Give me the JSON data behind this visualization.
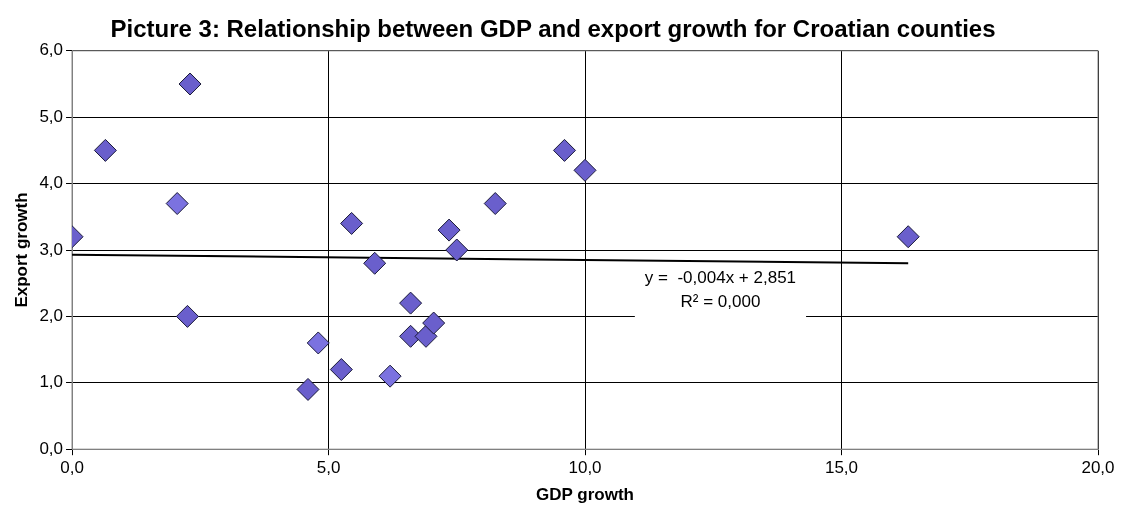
{
  "chart_data": {
    "type": "scatter",
    "title": "Picture 3: Relationship between GDP and export growth for Croatian counties",
    "xlabel": "GDP growth",
    "ylabel": "Export growth",
    "x": [
      0,
      0.65,
      2.3,
      2.05,
      2.25,
      4.6,
      4.8,
      5.25,
      5.45,
      5.9,
      6.2,
      6.6,
      6.6,
      6.9,
      7.05,
      7.35,
      7.5,
      8.25,
      9.6,
      10,
      16.3
    ],
    "series": [
      {
        "marker": "diamond",
        "colors": [
          "#6a5fcc",
          "#6a5fcc",
          "#6a5fcc",
          "#7b72e0",
          "#6a5fcc",
          "#6a5fcc",
          "#7b72e0",
          "#6a5fcc",
          "#6a5fcc",
          "#6a5fcc",
          "#7b72e0",
          "#6a5fcc",
          "#6a5fcc",
          "#6a5fcc",
          "#6a5fcc",
          "#6a5fcc",
          "#6a5fcc",
          "#6a5fcc",
          "#6a5fcc",
          "#6a5fcc",
          "#6a5fcc"
        ],
        "values": [
          3.2,
          4.5,
          5.5,
          3.7,
          2.0,
          0.9,
          1.6,
          1.2,
          3.4,
          2.8,
          1.1,
          2.2,
          1.7,
          1.7,
          1.9,
          3.3,
          3.0,
          3.7,
          4.5,
          4.2,
          3.2
        ]
      },
      {
        "type": "line",
        "marker": "none",
        "color": "#000000",
        "x": [
          0,
          16.3
        ],
        "values": [
          2.93,
          2.8
        ]
      }
    ],
    "xlim": [
      0,
      20
    ],
    "xticks": [
      {
        "value": 0,
        "label": "0,0"
      },
      {
        "value": 5,
        "label": "5,0"
      },
      {
        "value": 10,
        "label": "10,0"
      },
      {
        "value": 15,
        "label": "15,0"
      },
      {
        "value": 20,
        "label": "20,0"
      }
    ],
    "ylim": [
      0,
      6
    ],
    "yticks": [
      {
        "value": 0,
        "label": "0,0"
      },
      {
        "value": 1,
        "label": "1,0"
      },
      {
        "value": 2,
        "label": "2,0"
      },
      {
        "value": 3,
        "label": "3,0"
      },
      {
        "value": 4,
        "label": "4,0"
      },
      {
        "value": 5,
        "label": "5,0"
      },
      {
        "value": 6,
        "label": "6,0"
      }
    ],
    "grid": true,
    "legend": false,
    "annotations": [
      "y =  -0,004x + 2,851",
      "R² = 0,000"
    ]
  }
}
